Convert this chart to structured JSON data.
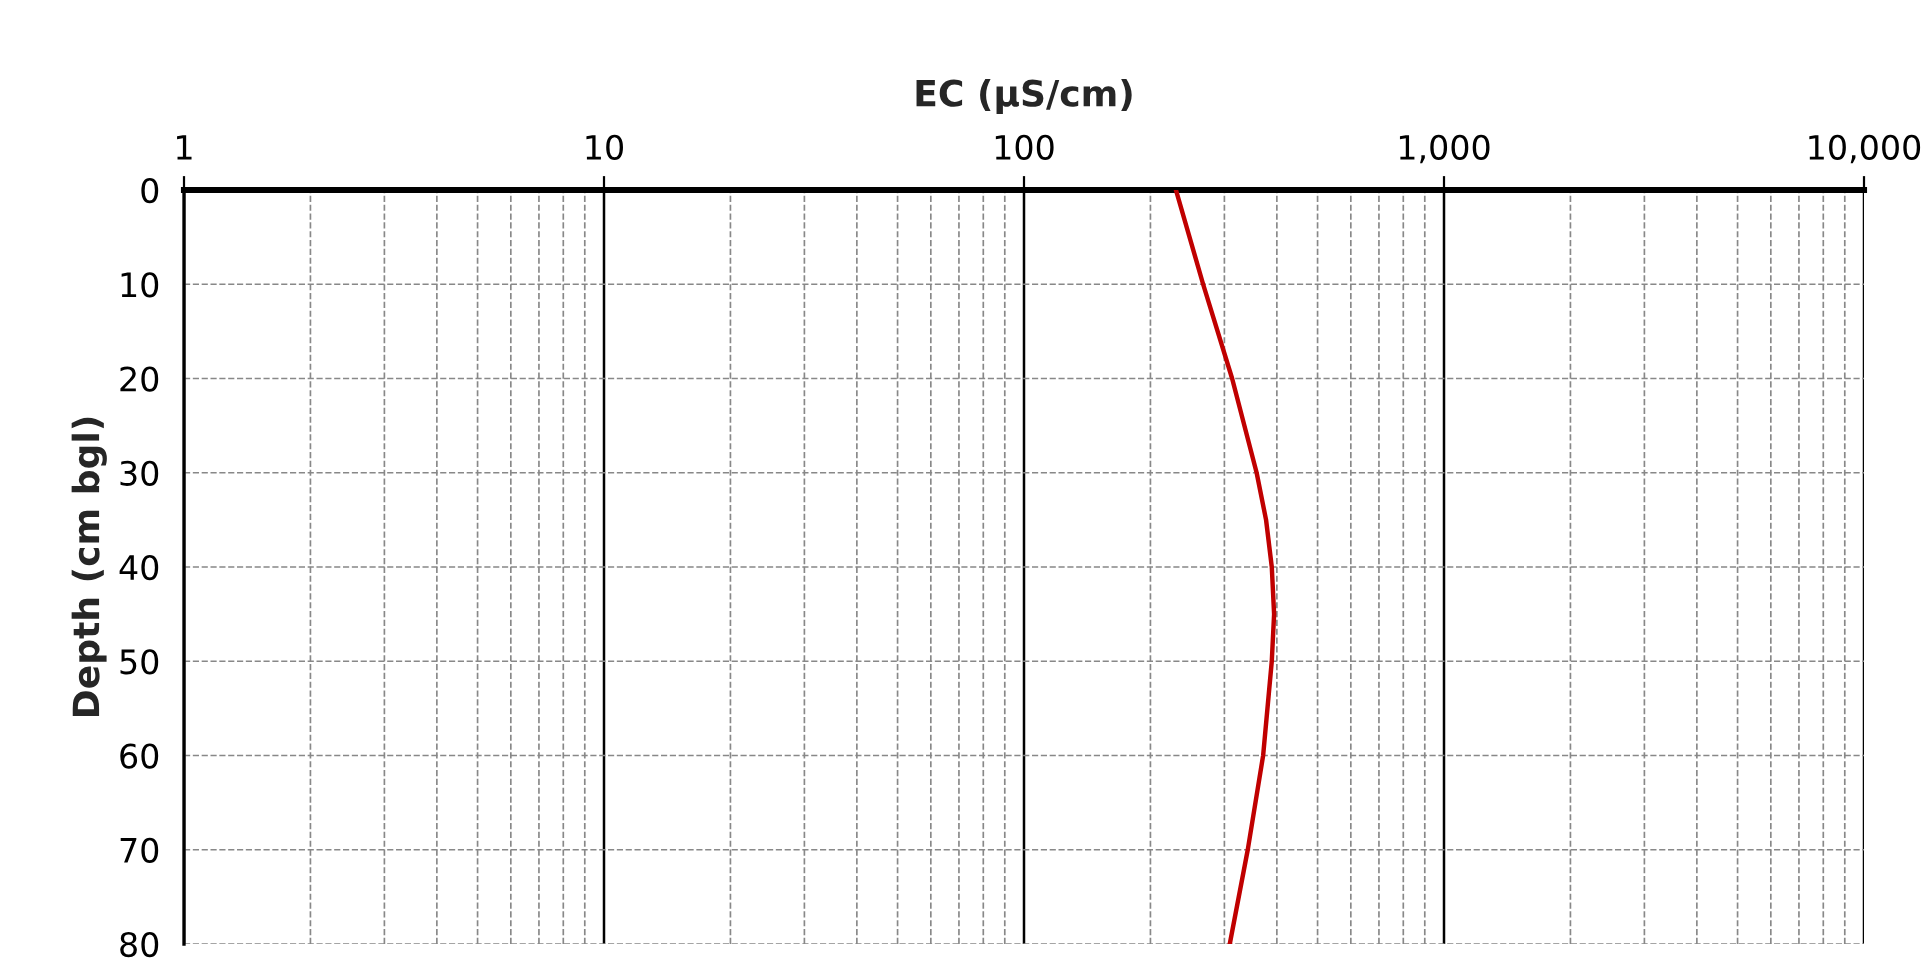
{
  "chart_data": {
    "type": "line",
    "xlabel": "EC (µS/cm)",
    "ylabel": "Depth (cm bgl)",
    "log": "x",
    "xlim": [
      1,
      10000
    ],
    "xticks": [
      1,
      10,
      100,
      {
        "value": 1000,
        "label": "1,000"
      },
      {
        "value": 10000,
        "label": "10,000"
      }
    ],
    "ylim": [
      80,
      0
    ],
    "yticks": [
      0,
      10,
      20,
      30,
      40,
      50,
      60,
      70,
      80
    ],
    "grid": true,
    "marker": "none",
    "line_style": "solid",
    "series": [
      {
        "color": "#c00000",
        "x": [
          230,
          267,
          313,
          358,
          377,
          389,
          394,
          389,
          371,
          341,
          309
        ],
        "values": [
          0,
          10,
          20,
          30,
          35,
          40,
          45,
          50,
          60,
          70,
          80
        ]
      }
    ]
  }
}
